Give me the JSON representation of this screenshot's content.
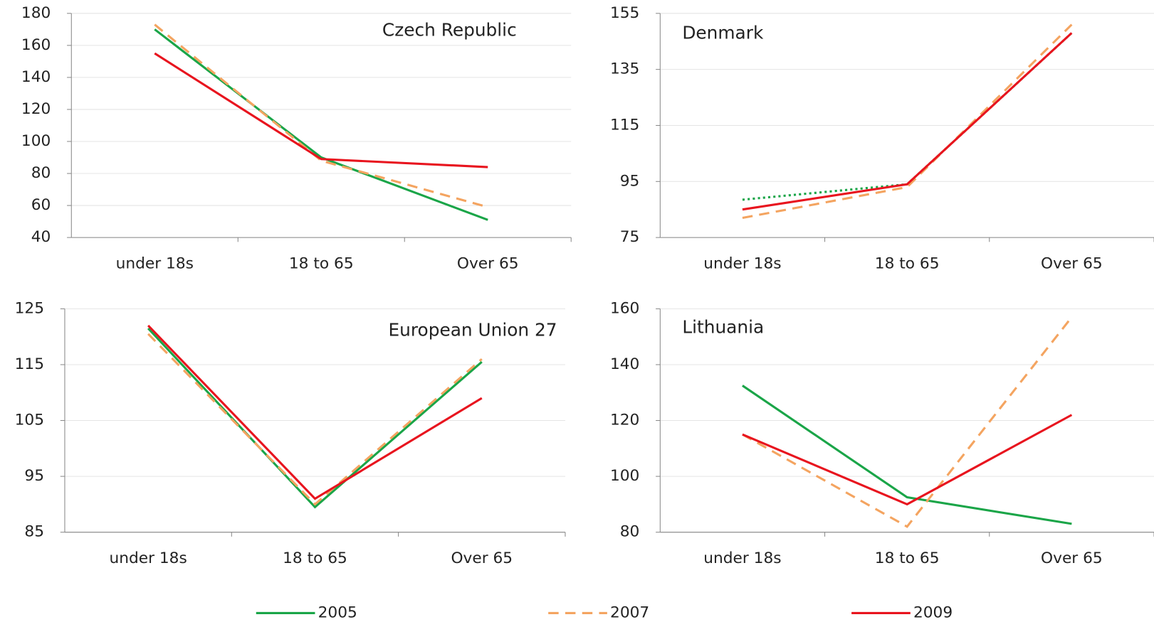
{
  "chart_data": [
    {
      "type": "line",
      "title": "Czech Republic",
      "categories": [
        "under 18s",
        "18 to 65",
        "Over 65"
      ],
      "series": [
        {
          "values": [
            170,
            90,
            51
          ]
        },
        {
          "values": [
            173,
            88,
            59
          ]
        },
        {
          "values": [
            155,
            89,
            84
          ]
        }
      ],
      "ylim": [
        40,
        180
      ],
      "yticks": [
        40,
        60,
        80,
        100,
        120,
        140,
        160,
        180
      ],
      "grid": true
    },
    {
      "type": "line",
      "title": "Denmark",
      "categories": [
        "under 18s",
        "18 to 65",
        "Over 65"
      ],
      "series": [
        {
          "values": [
            88.5,
            94,
            148
          ],
          "line_style": "dotted"
        },
        {
          "values": [
            82,
            93,
            151
          ]
        },
        {
          "values": [
            85,
            94,
            148
          ]
        }
      ],
      "ylim": [
        75,
        155
      ],
      "yticks": [
        75,
        95,
        115,
        135,
        155
      ],
      "grid": true
    },
    {
      "type": "line",
      "title": "European Union 27",
      "categories": [
        "under 18s",
        "18 to 65",
        "Over 65"
      ],
      "series": [
        {
          "values": [
            121.5,
            89.5,
            115.5
          ]
        },
        {
          "values": [
            120.5,
            90,
            116
          ]
        },
        {
          "values": [
            122,
            91,
            109
          ]
        }
      ],
      "ylim": [
        85,
        125
      ],
      "yticks": [
        85,
        95,
        105,
        115,
        125
      ],
      "grid": true
    },
    {
      "type": "line",
      "title": "Lithuania",
      "categories": [
        "under 18s",
        "18 to 65",
        "Over 65"
      ],
      "series": [
        {
          "values": [
            132.5,
            92.5,
            83
          ]
        },
        {
          "values": [
            115,
            82,
            157
          ]
        },
        {
          "values": [
            115,
            90,
            122
          ]
        }
      ],
      "ylim": [
        80,
        160
      ],
      "yticks": [
        80,
        100,
        120,
        140,
        160
      ],
      "grid": true
    }
  ],
  "legend": [
    {
      "name": "2005",
      "color": "#1aa548",
      "line_style": "solid"
    },
    {
      "name": "2007",
      "color": "#f4a460",
      "line_style": "dashed"
    },
    {
      "name": "2009",
      "color": "#e8141e",
      "line_style": "solid"
    }
  ]
}
